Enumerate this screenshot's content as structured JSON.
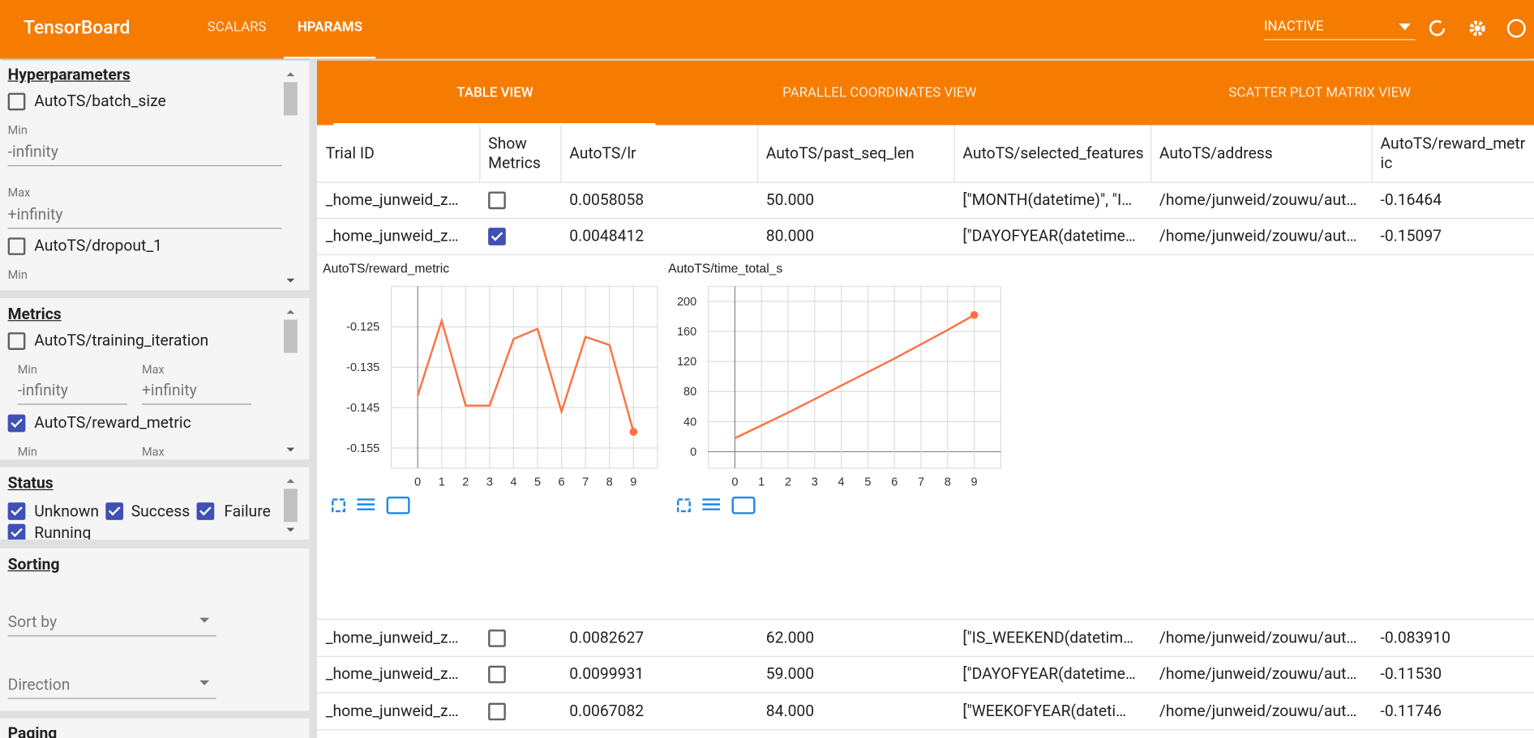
{
  "header": {
    "title": "TensorBoard",
    "tabs": [
      "SCALARS",
      "HPARAMS"
    ],
    "run_selector": "INACTIVE"
  },
  "sidebar": {
    "hyperparameters": {
      "title": "Hyperparameters",
      "items": [
        {
          "name": "AutoTS/batch_size",
          "checked": false,
          "min_label": "Min",
          "min": "-infinity",
          "max_label": "Max",
          "max": "+infinity"
        },
        {
          "name": "AutoTS/dropout_1",
          "checked": false,
          "min_label": "Min"
        }
      ]
    },
    "metrics": {
      "title": "Metrics",
      "items": [
        {
          "name": "AutoTS/training_iteration",
          "checked": false,
          "min_label": "Min",
          "min": "-infinity",
          "max_label": "Max",
          "max": "+infinity"
        },
        {
          "name": "AutoTS/reward_metric",
          "checked": true,
          "min_label": "Min",
          "max_label": "Max"
        }
      ]
    },
    "status": {
      "title": "Status",
      "items": [
        {
          "name": "Unknown",
          "checked": true
        },
        {
          "name": "Success",
          "checked": true
        },
        {
          "name": "Failure",
          "checked": true
        },
        {
          "name": "Running",
          "checked": true
        }
      ]
    },
    "sorting": {
      "title": "Sorting",
      "sort_by": "Sort by",
      "direction": "Direction"
    },
    "paging": {
      "title": "Paging"
    }
  },
  "views": [
    "TABLE VIEW",
    "PARALLEL COORDINATES VIEW",
    "SCATTER PLOT MATRIX VIEW"
  ],
  "table": {
    "columns": [
      "Trial ID",
      "Show Metrics",
      "AutoTS/lr",
      "AutoTS/past_seq_len",
      "AutoTS/selected_features",
      "AutoTS/address",
      "AutoTS/reward_metric"
    ],
    "rows": [
      {
        "trial_id": "_home_junweid_z…",
        "show_metrics": false,
        "lr": "0.0058058",
        "past_seq_len": "50.000",
        "selected_features": "[\"MONTH(datetime)\", \"I…",
        "address": "/home/junweid/zouwu/aut…",
        "reward_metric": "-0.16464"
      },
      {
        "trial_id": "_home_junweid_z…",
        "show_metrics": true,
        "lr": "0.0048412",
        "past_seq_len": "80.000",
        "selected_features": "[\"DAYOFYEAR(datetime…",
        "address": "/home/junweid/zouwu/aut…",
        "reward_metric": "-0.15097"
      },
      {
        "trial_id": "_home_junweid_z…",
        "show_metrics": false,
        "lr": "0.0082627",
        "past_seq_len": "62.000",
        "selected_features": "[\"IS_WEEKEND(datetim…",
        "address": "/home/junweid/zouwu/aut…",
        "reward_metric": "-0.083910"
      },
      {
        "trial_id": "_home_junweid_z…",
        "show_metrics": false,
        "lr": "0.0099931",
        "past_seq_len": "59.000",
        "selected_features": "[\"DAYOFYEAR(datetime…",
        "address": "/home/junweid/zouwu/aut…",
        "reward_metric": "-0.11530"
      },
      {
        "trial_id": "_home_junweid_z…",
        "show_metrics": false,
        "lr": "0.0067082",
        "past_seq_len": "84.000",
        "selected_features": "[\"WEEKOFYEAR(dateti…",
        "address": "/home/junweid/zouwu/aut…",
        "reward_metric": "-0.11746"
      }
    ]
  },
  "chart_data": [
    {
      "type": "line",
      "title": "AutoTS/reward_metric",
      "x": [
        0,
        1,
        2,
        3,
        4,
        5,
        6,
        7,
        8,
        9
      ],
      "values": [
        -0.142,
        -0.1235,
        -0.1445,
        -0.1445,
        -0.128,
        -0.1255,
        -0.146,
        -0.1275,
        -0.1295,
        -0.151
      ],
      "color": "#ff7043",
      "xlim": [
        -1.1,
        10
      ],
      "ylim": [
        -0.16,
        -0.115
      ],
      "xticks": [
        0,
        1,
        2,
        3,
        4,
        5,
        6,
        7,
        8,
        9
      ],
      "yticks": [
        -0.125,
        -0.135,
        -0.145,
        -0.155
      ],
      "grid": true
    },
    {
      "type": "line",
      "title": "AutoTS/time_total_s",
      "x": [
        0,
        1,
        2,
        3,
        4,
        5,
        6,
        7,
        8,
        9
      ],
      "values": [
        18,
        35,
        52,
        70,
        88,
        106,
        124,
        143,
        162,
        182
      ],
      "color": "#ff7043",
      "xlim": [
        -1,
        10
      ],
      "ylim": [
        -22,
        220
      ],
      "xticks": [
        0,
        1,
        2,
        3,
        4,
        5,
        6,
        7,
        8,
        9
      ],
      "yticks": [
        0,
        40,
        80,
        120,
        160,
        200
      ],
      "grid": true
    }
  ]
}
